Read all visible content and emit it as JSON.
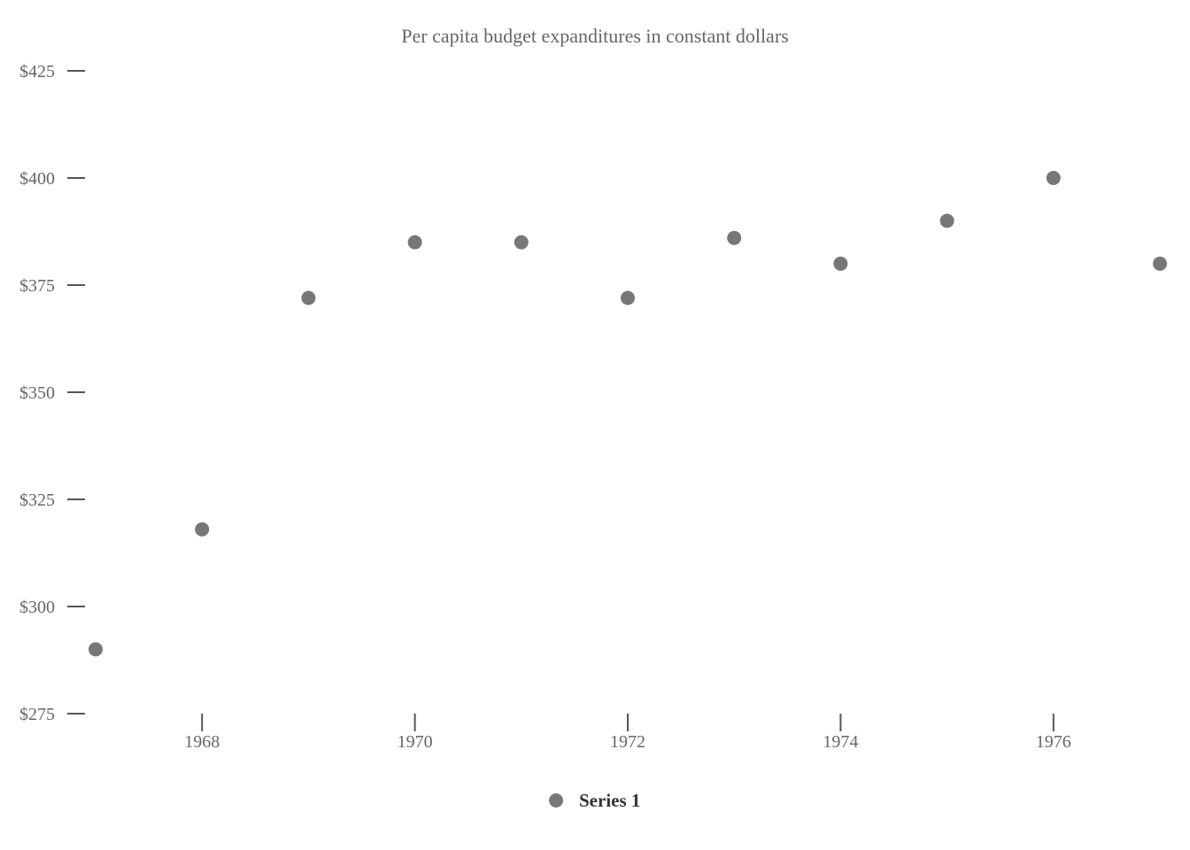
{
  "chart_data": {
    "type": "scatter",
    "title": "Per capita budget expanditures in constant dollars",
    "xlabel": "",
    "ylabel": "",
    "x_ticks": [
      "1968",
      "1970",
      "1972",
      "1974",
      "1976"
    ],
    "x_tick_values": [
      1968,
      1970,
      1972,
      1974,
      1976
    ],
    "y_ticks": [
      "$275",
      "$300",
      "$325",
      "$350",
      "$375",
      "$400",
      "$425"
    ],
    "y_tick_values": [
      275,
      300,
      325,
      350,
      375,
      400,
      425
    ],
    "xlim": [
      1967,
      1977
    ],
    "ylim": [
      275,
      425
    ],
    "grid": false,
    "legend_position": "bottom-center",
    "series": [
      {
        "name": "Series 1",
        "color": "#777777",
        "x": [
          1967,
          1968,
          1969,
          1970,
          1971,
          1972,
          1973,
          1974,
          1975,
          1976,
          1977
        ],
        "y": [
          290,
          318,
          372,
          385,
          385,
          372,
          386,
          380,
          390,
          400,
          380
        ]
      }
    ]
  }
}
